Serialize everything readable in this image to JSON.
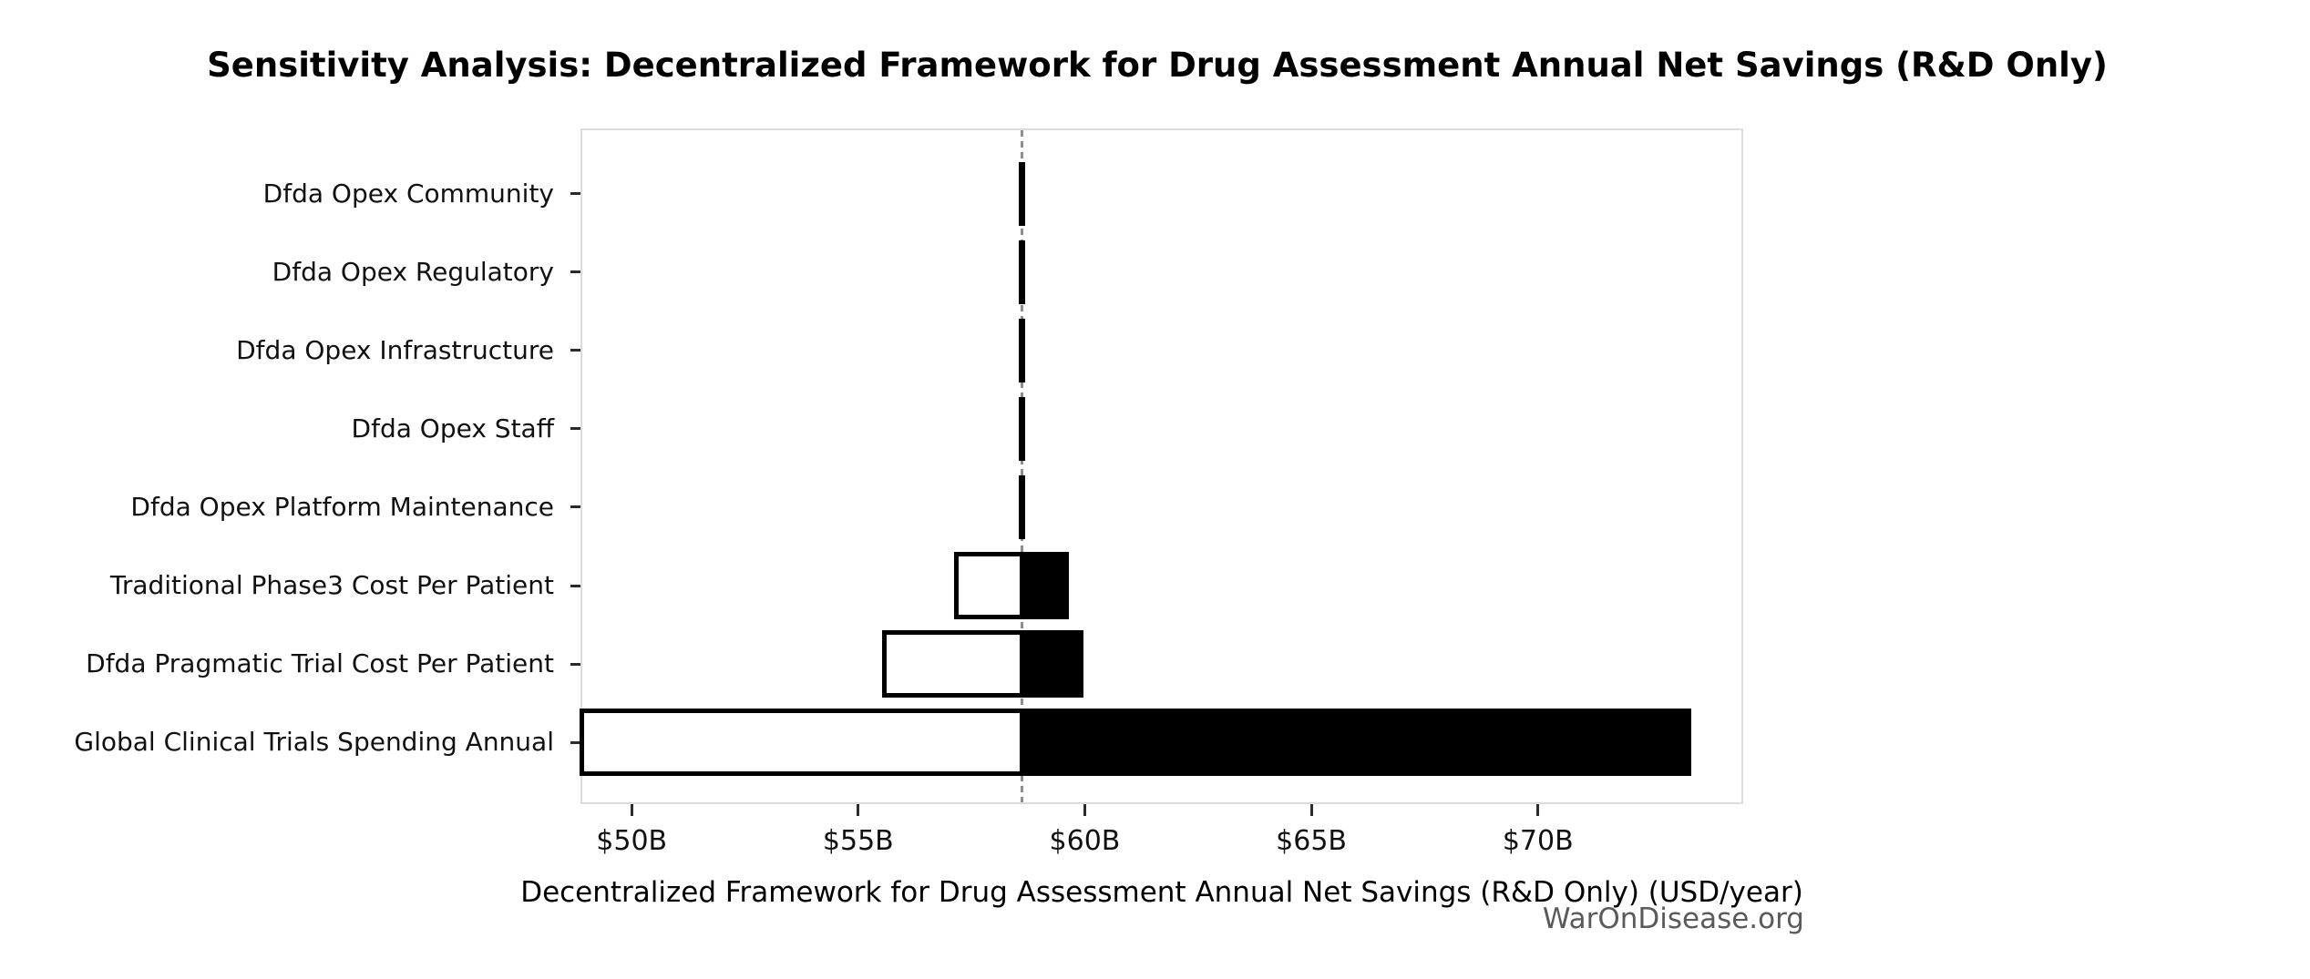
{
  "figure": {
    "watermark": "WarOnDisease.org"
  },
  "chart_data": {
    "type": "bar",
    "variant": "tornado-sensitivity",
    "orientation": "horizontal",
    "title": "Sensitivity Analysis: Decentralized Framework for Drug Assessment Annual Net Savings (R&D Only)",
    "xlabel": "Decentralized Framework for Drug Assessment Annual Net Savings (R&D Only) (USD/year)",
    "ylabel": "",
    "unit": "USD billions per year",
    "grid": false,
    "legend": "none",
    "baseline_value": 58.62,
    "xlim": [
      48.87,
      74.53
    ],
    "xticks": [
      {
        "value": 50,
        "label": "$50B"
      },
      {
        "value": 55,
        "label": "$55B"
      },
      {
        "value": 60,
        "label": "$60B"
      },
      {
        "value": 65,
        "label": "$65B"
      },
      {
        "value": 70,
        "label": "$70B"
      }
    ],
    "categories": [
      "Dfda Opex Community",
      "Dfda Opex Regulatory",
      "Dfda Opex Infrastructure",
      "Dfda Opex Staff",
      "Dfda Opex Platform Maintenance",
      "Traditional Phase3 Cost Per Patient",
      "Dfda Pragmatic Trial Cost Per Patient",
      "Global Clinical Trials Spending Annual"
    ],
    "bars": [
      {
        "label": "Dfda Opex Community",
        "low": 58.55,
        "high": 58.68
      },
      {
        "label": "Dfda Opex Regulatory",
        "low": 58.55,
        "high": 58.68
      },
      {
        "label": "Dfda Opex Infrastructure",
        "low": 58.56,
        "high": 58.67
      },
      {
        "label": "Dfda Opex Staff",
        "low": 58.57,
        "high": 58.66
      },
      {
        "label": "Dfda Opex Platform Maintenance",
        "low": 58.58,
        "high": 58.65
      },
      {
        "label": "Traditional Phase3 Cost Per Patient",
        "low": 57.17,
        "high": 59.58
      },
      {
        "label": "Dfda Pragmatic Trial Cost Per Patient",
        "low": 55.58,
        "high": 59.92
      },
      {
        "label": "Global Clinical Trials Spending Annual",
        "low": 48.9,
        "high": 73.32
      }
    ],
    "colors": {
      "bar_low_fill": "#ffffff",
      "bar_high_fill": "#000000",
      "bar_edge": "#000000",
      "baseline_line": "#8c8c8c",
      "spine": "#dcdcdc",
      "tick": "#2b2b2b",
      "text": "#000000",
      "watermark": "#5a5a5a"
    }
  }
}
